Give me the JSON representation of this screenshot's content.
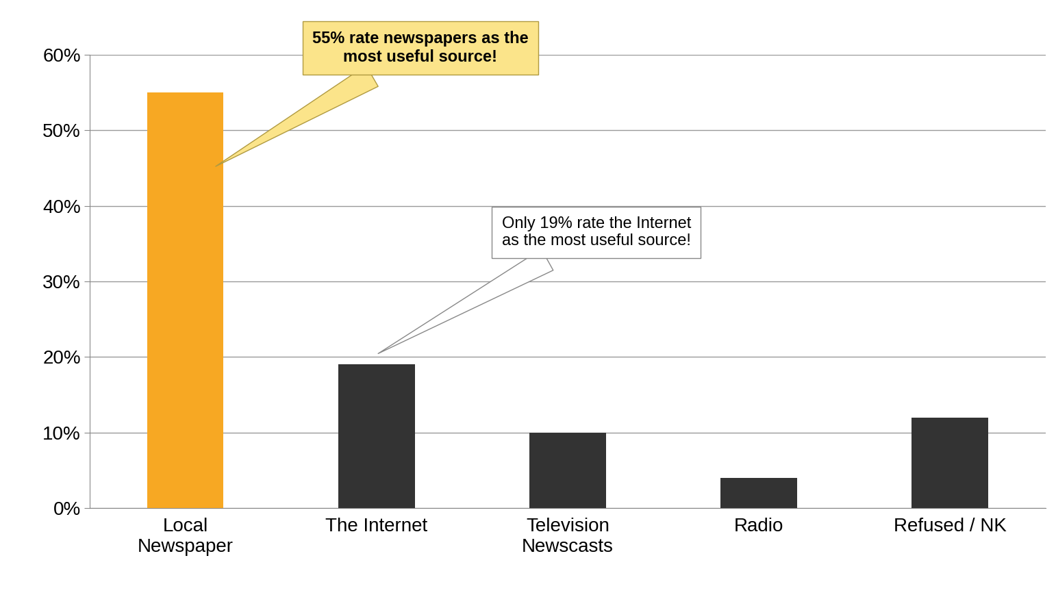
{
  "chart_data": {
    "type": "bar",
    "categories": [
      "Local Newspaper",
      "The Internet",
      "Television Newscasts",
      "Radio",
      "Refused / NK"
    ],
    "values": [
      55,
      19,
      10,
      4,
      12
    ],
    "colors": [
      "#f7a823",
      "#333333",
      "#333333",
      "#333333",
      "#333333"
    ],
    "ylim": [
      0,
      60
    ],
    "yticks": [
      {
        "value": 0,
        "label": "0%"
      },
      {
        "value": 10,
        "label": "10%"
      },
      {
        "value": 20,
        "label": "20%"
      },
      {
        "value": 30,
        "label": "30%"
      },
      {
        "value": 40,
        "label": "40%"
      },
      {
        "value": 50,
        "label": "50%"
      },
      {
        "value": 60,
        "label": "60%"
      }
    ],
    "grid": true,
    "annotations": [
      {
        "text": "55% rate newspapers as the most useful source!",
        "category": "Local Newspaper"
      },
      {
        "text": "Only 19% rate the Internet as the most useful source!",
        "category": "The Internet"
      }
    ]
  }
}
